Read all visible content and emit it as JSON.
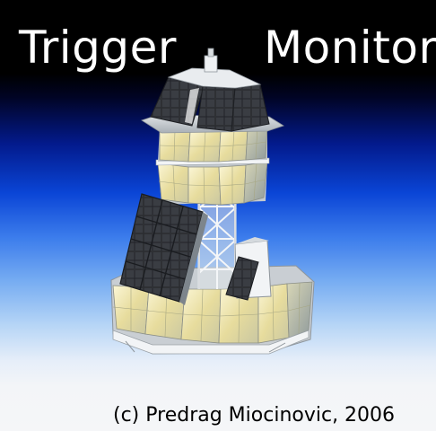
{
  "title": {
    "left_word": "Trigger",
    "right_word": "Monitor"
  },
  "credit": "(c) Predrag Miocinovic, 2006",
  "illustration": {
    "subject": "detector-instrument-render"
  },
  "colors": {
    "sky_top": "#000000",
    "sky_mid": "#0a45d6",
    "sky_bottom": "#f5f6f8",
    "panel_dark": "#2b2d31",
    "antenna_cream": "#efe6b4",
    "frame_white": "#f4f6f8"
  }
}
